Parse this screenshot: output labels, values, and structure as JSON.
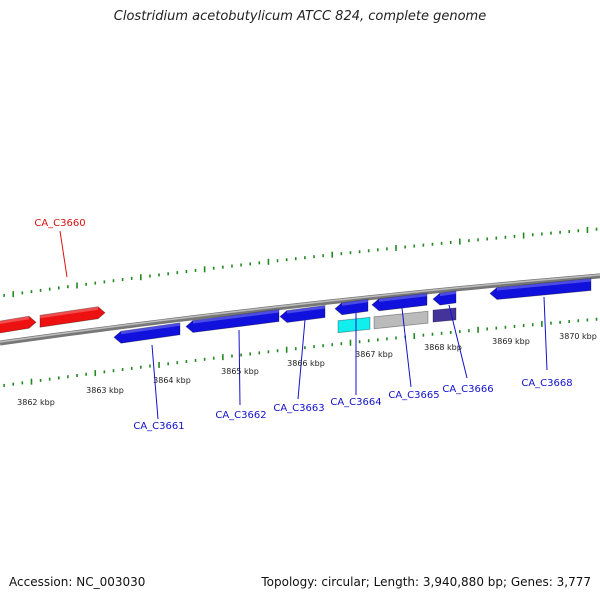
{
  "title": "Clostridium acetobutylicum ATCC 824, complete genome",
  "footer": {
    "accession": "Accession: NC_003030",
    "summary": "Topology: circular; Length: 3,940,880 bp; Genes: 3,777"
  },
  "colors": {
    "forward_strand": "#ee1111",
    "reverse_strand": "#1111dd",
    "cyan_feature": "#11eeee",
    "gray_feature": "#bbbbbb",
    "navy_feature": "#443399",
    "backbone": "#888888",
    "tick": "#228822",
    "label_red": "#dd1111",
    "label_blue": "#1111cc"
  },
  "scale": {
    "unit": "kbp",
    "major_ticks_kbp": [
      3862,
      3863,
      3864,
      3865,
      3866,
      3867,
      3868,
      3869,
      3870
    ],
    "tick_labels": [
      "3862 kbp",
      "3863 kbp",
      "3864 kbp",
      "3865 kbp",
      "3866 kbp",
      "3867 kbp",
      "3868 kbp",
      "3869 kbp",
      "3870 kbp"
    ]
  },
  "genes": [
    {
      "id": "CA_C3660",
      "label": "CA_C3660",
      "strand": "forward",
      "color": "red"
    },
    {
      "id": "CA_C3661",
      "label": "CA_C3661",
      "strand": "reverse",
      "color": "blue"
    },
    {
      "id": "CA_C3662",
      "label": "CA_C3662",
      "strand": "reverse",
      "color": "blue"
    },
    {
      "id": "CA_C3663",
      "label": "CA_C3663",
      "strand": "reverse",
      "color": "blue"
    },
    {
      "id": "CA_C3664",
      "label": "CA_C3664",
      "strand": "reverse",
      "color": "blue"
    },
    {
      "id": "CA_C3665",
      "label": "CA_C3665",
      "strand": "reverse",
      "color": "blue"
    },
    {
      "id": "CA_C3666",
      "label": "CA_C3666",
      "strand": "reverse",
      "color": "blue"
    },
    {
      "id": "CA_C3668",
      "label": "CA_C3668",
      "strand": "reverse",
      "color": "blue"
    }
  ],
  "features": [
    {
      "type": "forward-gene",
      "color": "red"
    },
    {
      "type": "forward-gene",
      "color": "red"
    },
    {
      "type": "reverse-gene",
      "color": "blue"
    },
    {
      "type": "reverse-gene",
      "color": "blue"
    },
    {
      "type": "reverse-gene",
      "color": "blue"
    },
    {
      "type": "reverse-gene",
      "color": "blue"
    },
    {
      "type": "reverse-gene",
      "color": "blue"
    },
    {
      "type": "reverse-gene",
      "color": "blue"
    },
    {
      "type": "reverse-gene",
      "color": "blue"
    },
    {
      "type": "feature",
      "color": "cyan"
    },
    {
      "type": "feature",
      "color": "gray"
    },
    {
      "type": "feature",
      "color": "navy"
    }
  ]
}
